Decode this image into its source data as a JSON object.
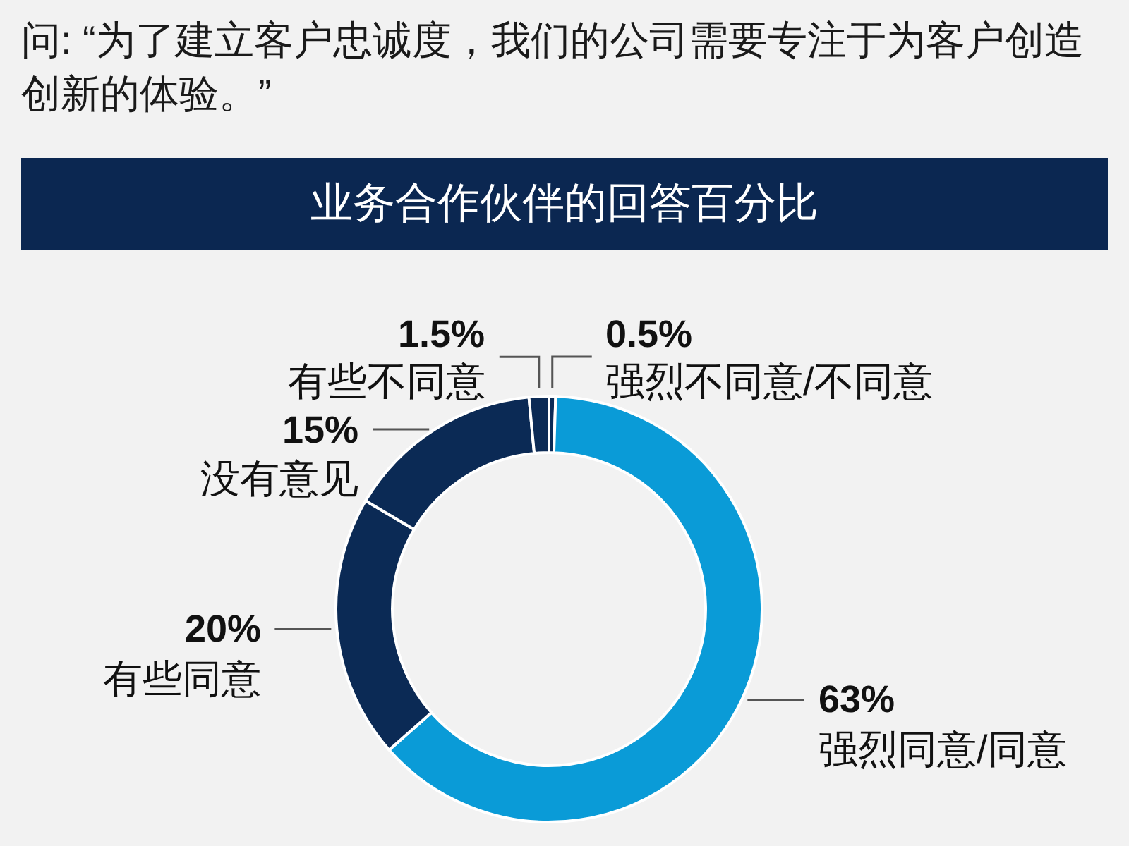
{
  "chart_data": {
    "type": "donut",
    "title": "问: “为了建立客户忠诚度，我们的公司需要专注于为客户创造创新的体验。”",
    "subtitle": "业务合作伙伴的回答百分比",
    "categories": [
      "强烈不同意/不同意",
      "强烈同意/同意",
      "有些同意",
      "没有意见",
      "有些不同意"
    ],
    "values": [
      0.5,
      63,
      20,
      15,
      1.5
    ],
    "colors": [
      "#0b2a55",
      "#0a9bd7",
      "#0b2a55",
      "#0b2a55",
      "#0b2a55"
    ],
    "value_labels": [
      "0.5%",
      "63%",
      "20%",
      "15%",
      "1.5%"
    ]
  }
}
